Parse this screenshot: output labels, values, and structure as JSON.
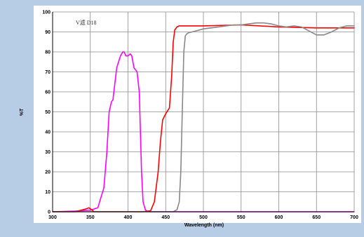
{
  "chart_data": {
    "type": "line",
    "xlabel": "Wavelength (nm)",
    "ylabel": "%T",
    "xlim": [
      300,
      700
    ],
    "ylim": [
      0,
      100
    ],
    "x_ticks": [
      300,
      350,
      400,
      450,
      500,
      550,
      600,
      650,
      700
    ],
    "y_ticks": [
      0,
      10,
      20,
      30,
      40,
      50,
      60,
      70,
      80,
      90,
      100
    ],
    "grid": true,
    "annotation": "V滤 D18",
    "colors": {
      "background": "#b7cde6",
      "plot": "#ffffff",
      "grid": "#8c8c8c"
    },
    "series": [
      {
        "color": "#ff00ff",
        "x": [
          300,
          330,
          350,
          360,
          368,
          372,
          375,
          378,
          380,
          385,
          390,
          393,
          395,
          397,
          400,
          403,
          405,
          408,
          410,
          412,
          415,
          418,
          420,
          423,
          425,
          430,
          450,
          500,
          600,
          700
        ],
        "y": [
          0,
          0.3,
          0.8,
          2,
          12,
          30,
          50,
          55,
          56,
          72,
          78,
          80,
          80,
          78,
          78,
          79,
          78,
          72,
          71,
          70,
          60,
          20,
          5,
          1,
          0.3,
          0,
          0,
          0,
          0,
          0
        ]
      },
      {
        "color": "#ff0000",
        "x": [
          300,
          330,
          340,
          345,
          348,
          350,
          355,
          360,
          400,
          420,
          430,
          435,
          440,
          443,
          446,
          450,
          455,
          458,
          460,
          462,
          465,
          468,
          470,
          480,
          500,
          550,
          600,
          650,
          700
        ],
        "y": [
          0,
          0,
          1,
          1.5,
          2,
          1.5,
          0,
          0,
          0,
          0,
          0.5,
          5,
          20,
          35,
          46,
          49,
          52,
          68,
          85,
          91,
          92.5,
          93,
          93,
          93,
          93,
          93.5,
          92.5,
          92,
          92
        ]
      },
      {
        "color": "#888888",
        "x": [
          300,
          460,
          465,
          468,
          470,
          472,
          474,
          476,
          478,
          480,
          485,
          490,
          500,
          510,
          520,
          530,
          540,
          550,
          560,
          570,
          580,
          590,
          600,
          610,
          620,
          630,
          640,
          650,
          660,
          670,
          680,
          690,
          700
        ],
        "y": [
          0,
          0,
          1,
          5,
          20,
          50,
          80,
          88,
          89,
          89.5,
          90,
          90.5,
          91.5,
          92,
          92.5,
          93,
          93.5,
          93.5,
          94,
          94.5,
          94.5,
          94,
          93,
          92.5,
          93,
          92.5,
          90.5,
          88.5,
          88.5,
          90,
          92,
          93,
          93
        ]
      }
    ]
  }
}
